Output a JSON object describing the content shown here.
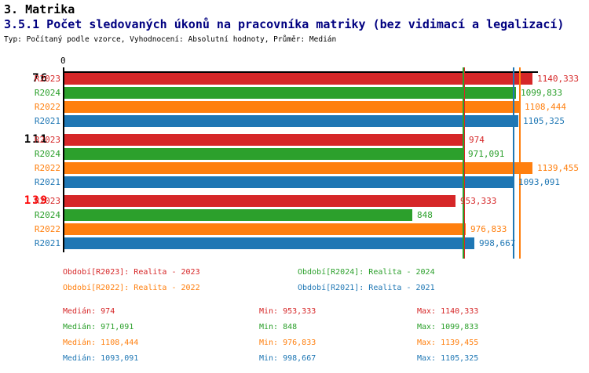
{
  "header": {
    "title": "3. Matrika",
    "subtitle": "3.5.1 Počet sledovaných úkonů na pracovníka matriky (bez vidimací a legalizací)",
    "meta": "Typ: Počítaný podle vzorce, Vyhodnocení: Absolutní hodnoty, Průměr: Medián"
  },
  "text_colors": {
    "title": "#000000",
    "subtitle": "#000080",
    "meta": "#000000"
  },
  "colors": {
    "R2023": "#d62728",
    "R2024": "#2ca02c",
    "R2022": "#ff7f0e",
    "R2021": "#1f77b4",
    "axis": "#000000",
    "group_alert": "#ff0000"
  },
  "chart_data": {
    "type": "bar",
    "orientation": "horizontal",
    "title": "3.5.1 Počet sledovaných úkonů na pracovníka matriky (bez vidimací a legalizací)",
    "axis": {
      "origin_label": "0",
      "min": 0,
      "gridlines": false
    },
    "series": [
      "R2023",
      "R2024",
      "R2022",
      "R2021"
    ],
    "groups": [
      {
        "label": "76",
        "label_color": "#000000",
        "values": [
          1140.333,
          1099.833,
          1108.444,
          1105.325
        ],
        "value_labels": [
          "1140,333",
          "1099,833",
          "1108,444",
          "1105,325"
        ]
      },
      {
        "label": "111",
        "label_color": "#000000",
        "values": [
          974,
          971.091,
          1139.455,
          1093.091
        ],
        "value_labels": [
          "974",
          "971,091",
          "1139,455",
          "1093,091"
        ]
      },
      {
        "label": "139",
        "label_color": "#ff0000",
        "values": [
          953.333,
          848,
          976.833,
          998.667
        ],
        "value_labels": [
          "953,333",
          "848",
          "976,833",
          "998,667"
        ]
      }
    ],
    "median_lines": [
      {
        "series": "R2023",
        "value": 974
      },
      {
        "series": "R2024",
        "value": 971.091
      },
      {
        "series": "R2022",
        "value": 1108.444
      },
      {
        "series": "R2021",
        "value": 1093.091
      }
    ]
  },
  "legend": [
    {
      "series": "R2023",
      "text": "Období[R2023]: Realita - 2023"
    },
    {
      "series": "R2024",
      "text": "Období[R2024]: Realita - 2024"
    },
    {
      "series": "R2022",
      "text": "Období[R2022]: Realita - 2022"
    },
    {
      "series": "R2021",
      "text": "Období[R2021]: Realita - 2021"
    }
  ],
  "stats": [
    {
      "series": "R2023",
      "median": "Medián: 974",
      "min": "Min: 953,333",
      "max": "Max: 1140,333"
    },
    {
      "series": "R2024",
      "median": "Medián: 971,091",
      "min": "Min: 848",
      "max": "Max: 1099,833"
    },
    {
      "series": "R2022",
      "median": "Medián: 1108,444",
      "min": "Min: 976,833",
      "max": "Max: 1139,455"
    },
    {
      "series": "R2021",
      "median": "Medián: 1093,091",
      "min": "Min: 998,667",
      "max": "Max: 1105,325"
    }
  ]
}
